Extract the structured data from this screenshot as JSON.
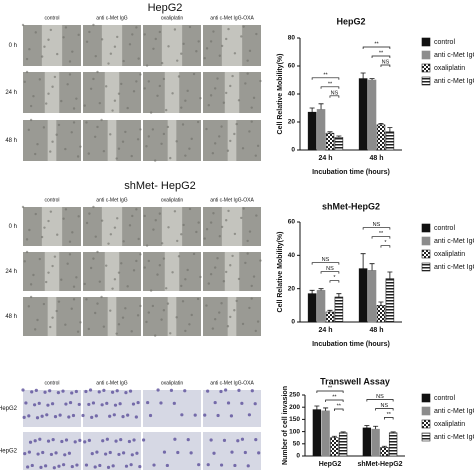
{
  "panels": [
    {
      "title": "HepG2",
      "columns": [
        "control",
        "anti c-Met IgG",
        "oxaliplatin",
        "anti c-Met IgG-OXA"
      ],
      "rows": [
        "0 h",
        "24 h",
        "48 h"
      ]
    },
    {
      "title": "shMet- HepG2",
      "columns": [
        "control",
        "anti c-Met IgG",
        "oxaliplatin",
        "anti c-Met IgG-OXA"
      ],
      "rows": [
        "0 h",
        "24 h",
        "48 h"
      ]
    },
    {
      "columns": [
        "control",
        "anti c-Met IgG",
        "oxaliplatin",
        "anti c-Met IgG-OXA"
      ],
      "rows": [
        "HepG2",
        "shMet-HepG2"
      ]
    }
  ],
  "chart_data": [
    {
      "type": "bar",
      "title": "HepG2",
      "ylabel": "Cell Relative Mobility(%)",
      "xlabel": "Incubation time (hours)",
      "categories": [
        "24 h",
        "48 h"
      ],
      "ylim": [
        0,
        80
      ],
      "yticks": [
        0,
        20,
        40,
        60,
        80
      ],
      "series": [
        {
          "name": "control",
          "color": "#111111",
          "values": [
            27,
            51
          ],
          "errors": [
            3,
            4
          ]
        },
        {
          "name": "anti c-Met IgG-",
          "color": "#8c8c8c",
          "values": [
            29,
            50
          ],
          "errors": [
            4,
            1
          ]
        },
        {
          "name": "oxaliplatin",
          "color": "#222222",
          "pattern": "checkered",
          "values": [
            12,
            18
          ],
          "errors": [
            1,
            1
          ]
        },
        {
          "name": "anti c-Met IgG-OXA",
          "color": "#222222",
          "pattern": "horizontal",
          "values": [
            9,
            13
          ],
          "errors": [
            1,
            3
          ]
        }
      ],
      "annotations": [
        "**",
        "**",
        "NS",
        "**",
        "**",
        "NS"
      ]
    },
    {
      "type": "bar",
      "title": "shMet-HepG2",
      "ylabel": "Cell Relative Mobility(%)",
      "xlabel": "Incubation time (hours)",
      "categories": [
        "24 h",
        "48 h"
      ],
      "ylim": [
        0,
        60
      ],
      "yticks": [
        0,
        20,
        40,
        60
      ],
      "series": [
        {
          "name": "control",
          "color": "#111111",
          "values": [
            17,
            32
          ],
          "errors": [
            2,
            9
          ]
        },
        {
          "name": "anti c-Met IgG",
          "color": "#8c8c8c",
          "values": [
            19,
            31
          ],
          "errors": [
            1,
            4
          ]
        },
        {
          "name": "oxaliplatin",
          "color": "#222222",
          "pattern": "checkered",
          "values": [
            6,
            10
          ],
          "errors": [
            1,
            2
          ]
        },
        {
          "name": "anti c-Met IgG-OXA",
          "color": "#222222",
          "pattern": "horizontal",
          "values": [
            15,
            26
          ],
          "errors": [
            2,
            4
          ]
        }
      ],
      "annotations": [
        "NS",
        "NS",
        "*",
        "NS",
        "**",
        "*"
      ]
    },
    {
      "type": "bar",
      "title": "Transwell Assay",
      "ylabel": "Number of cell invasion",
      "categories": [
        "HepG2",
        "shMet-HepG2"
      ],
      "ylim": [
        0,
        250
      ],
      "yticks": [
        0,
        50,
        100,
        150,
        200,
        250
      ],
      "series": [
        {
          "name": "control",
          "color": "#111111",
          "values": [
            190,
            115
          ],
          "errors": [
            15,
            10
          ]
        },
        {
          "name": "anti c-Met IgG",
          "color": "#8c8c8c",
          "values": [
            185,
            110
          ],
          "errors": [
            12,
            12
          ]
        },
        {
          "name": "oxaliplatin",
          "color": "#222222",
          "pattern": "checkered",
          "values": [
            75,
            35
          ],
          "errors": [
            6,
            5
          ]
        },
        {
          "name": "anti c-Met IgG-OXA",
          "color": "#222222",
          "pattern": "horizontal",
          "values": [
            95,
            95
          ],
          "errors": [
            4,
            4
          ]
        }
      ],
      "annotations": [
        "**",
        "**",
        "**",
        "NS",
        "NS",
        "**"
      ]
    }
  ]
}
